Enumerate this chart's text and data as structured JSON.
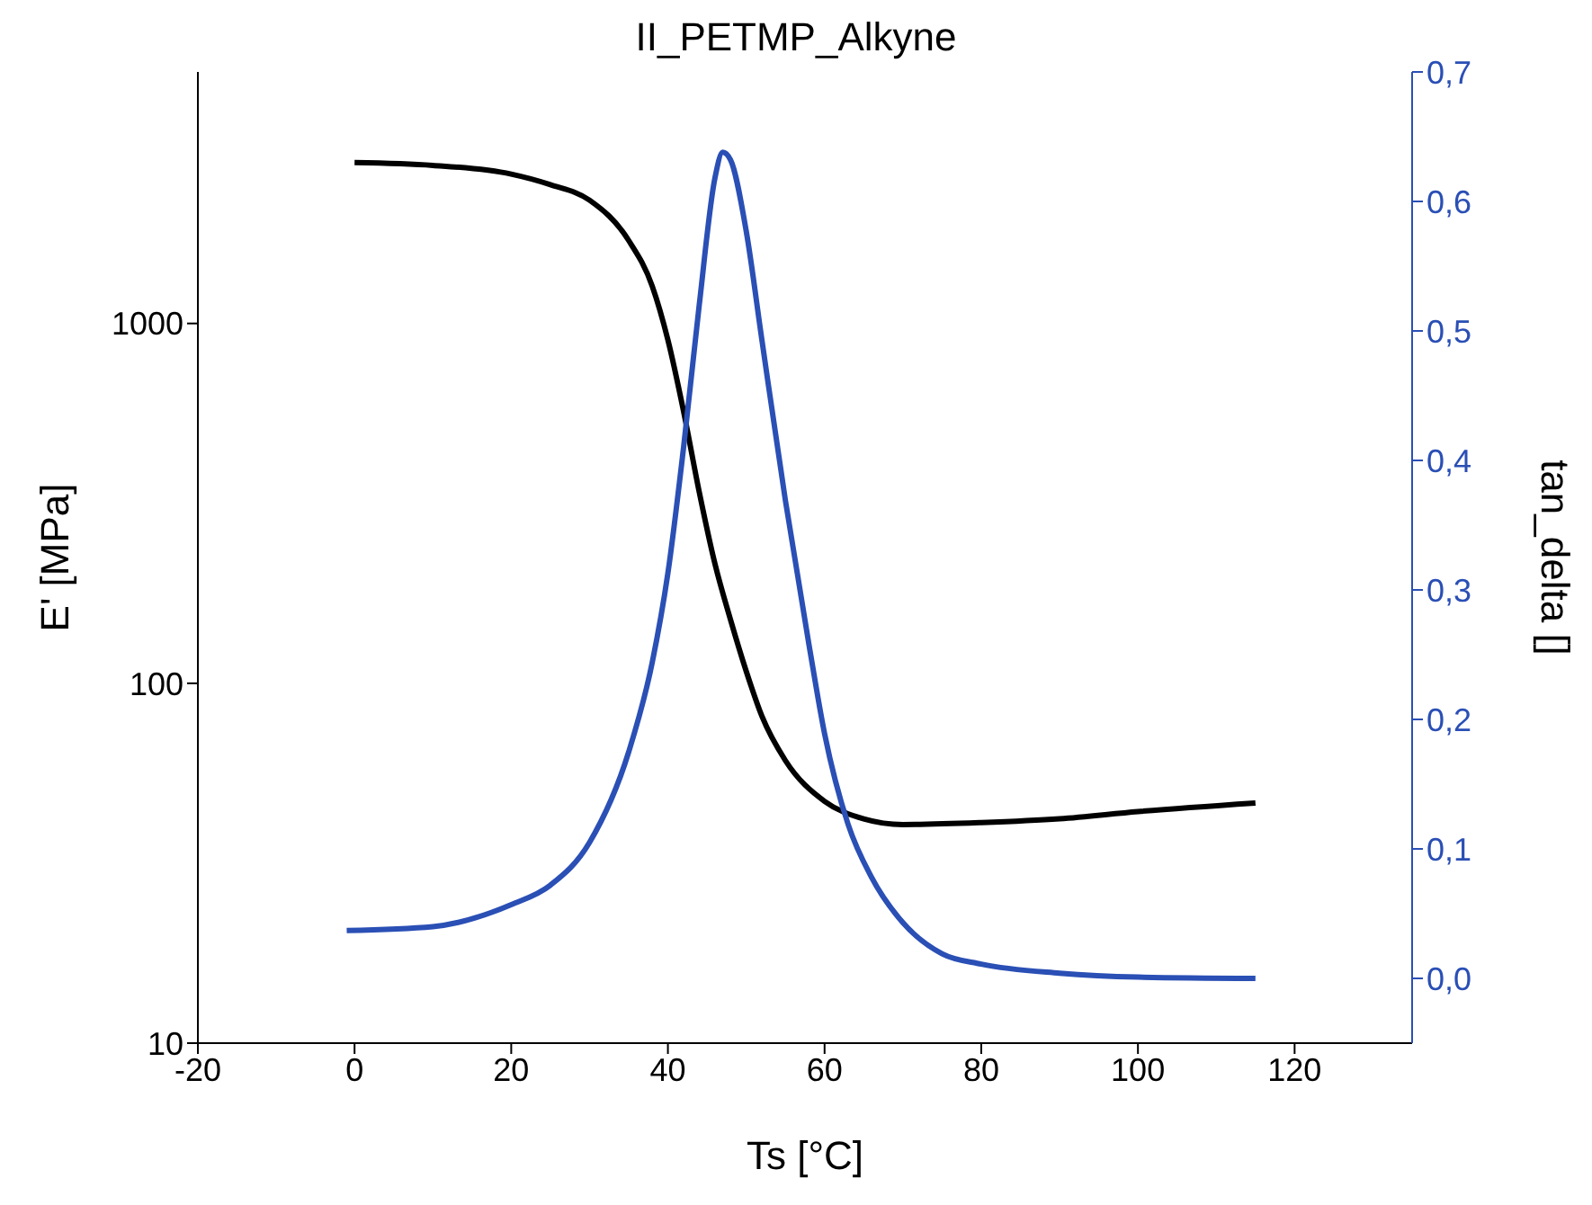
{
  "chart_data": {
    "type": "line",
    "title": "II_PETMP_Alkyne",
    "xlabel": "Ts [°C]",
    "ylabel": "E' [MPa]",
    "y2label": "tan_delta []",
    "log": "y",
    "marker": "none",
    "line_style": "solid",
    "xlim": [
      -20,
      135
    ],
    "xticks": [
      -20,
      0,
      20,
      40,
      60,
      80,
      100,
      120
    ],
    "ylim": [
      10,
      5000
    ],
    "yticks": [
      10,
      100,
      1000
    ],
    "y2lim": [
      -0.05,
      0.7
    ],
    "y2ticks": [
      {
        "value": 0,
        "label": "0,0"
      },
      {
        "value": 0.1,
        "label": "0,1"
      },
      {
        "value": 0.2,
        "label": "0,2"
      },
      {
        "value": 0.3,
        "label": "0,3"
      },
      {
        "value": 0.4,
        "label": "0,4"
      },
      {
        "value": 0.5,
        "label": "0,5"
      },
      {
        "value": 0.6,
        "label": "0,6"
      },
      {
        "value": 0.7,
        "label": "0,7"
      }
    ],
    "series": [
      {
        "color": "#000000",
        "x": [
          0,
          10,
          20,
          25,
          30,
          35,
          38,
          40,
          42,
          44,
          46,
          48,
          50,
          52,
          55,
          60,
          65,
          70,
          80,
          90,
          100,
          115
        ],
        "values": [
          2800,
          2750,
          2600,
          2430,
          2200,
          1700,
          1270,
          900,
          570,
          340,
          215,
          150,
          108,
          81,
          61,
          47,
          42,
          40.5,
          41,
          42,
          44,
          46.5
        ]
      },
      {
        "color": "#2a4fb5",
        "axis": "y2",
        "x": [
          -1,
          10,
          20,
          25,
          30,
          35,
          38,
          40,
          42,
          44,
          46,
          47,
          48,
          50,
          52,
          55,
          58,
          60,
          63,
          66,
          70,
          75,
          80,
          90,
          100,
          115
        ],
        "values": [
          0.037,
          0.04,
          0.057,
          0.072,
          0.105,
          0.175,
          0.244,
          0.313,
          0.41,
          0.52,
          0.618,
          0.638,
          0.632,
          0.577,
          0.493,
          0.369,
          0.258,
          0.189,
          0.119,
          0.078,
          0.043,
          0.019,
          0.011,
          0.004,
          0.001,
          0.0
        ]
      }
    ]
  }
}
